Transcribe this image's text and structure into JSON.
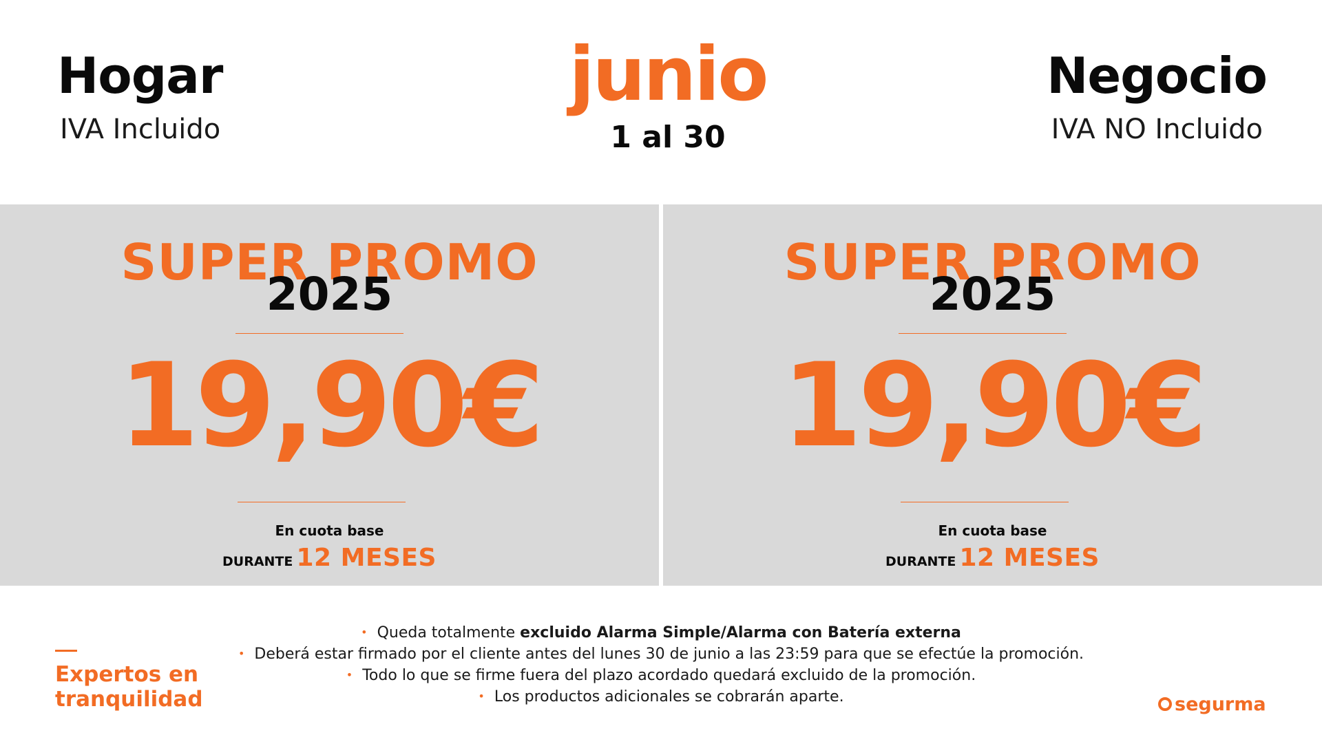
{
  "header": {
    "left_title": "Hogar",
    "left_subtitle": "IVA Incluido",
    "month": "junio",
    "date_range": "1 al 30",
    "right_title": "Negocio",
    "right_subtitle": "IVA NO Incluido"
  },
  "panels": [
    {
      "promo_title": "SUPER PROMO",
      "promo_year": "2025",
      "price": "19,90€",
      "cuota_label": "En cuota base",
      "durante_label": "DURANTE",
      "duration": "12 MESES"
    },
    {
      "promo_title": "SUPER PROMO",
      "promo_year": "2025",
      "price": "19,90€",
      "cuota_label": "En cuota base",
      "durante_label": "DURANTE",
      "duration": "12 MESES"
    }
  ],
  "notes": {
    "note1_prefix": "Queda totalmente ",
    "note1_bold": "excluido Alarma Simple/Alarma con Batería externa",
    "note2": "Deberá estar firmado por el cliente antes del lunes 30 de junio a las 23:59 para que se efectúe la promoción.",
    "note3": "Todo lo que se firme fuera del plazo acordado quedará excluido de la promoción.",
    "note4": "Los productos adicionales se cobrarán aparte."
  },
  "footer": {
    "slogan_line1": "Expertos en",
    "slogan_line2": "tranquilidad",
    "logo_text": "segurma"
  },
  "colors": {
    "accent": "#f26c24",
    "panel_bg": "#d9d9d9",
    "text": "#0a0a0a"
  }
}
